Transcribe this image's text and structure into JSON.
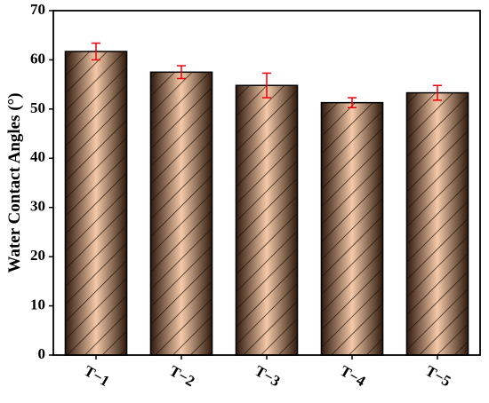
{
  "chart_data": {
    "type": "bar",
    "ylabel": "Water Contact Angles (°)",
    "categories": [
      "T−1",
      "T−2",
      "T−3",
      "T−4",
      "T−5"
    ],
    "values": [
      61.7,
      57.5,
      54.8,
      51.3,
      53.3
    ],
    "errors": [
      1.7,
      1.3,
      2.5,
      1.0,
      1.5
    ],
    "color": "#f5c9a8",
    "error_color": "#e8000b",
    "ylim": [
      0,
      70
    ],
    "yticks": [
      0,
      10,
      20,
      30,
      40,
      50,
      60,
      70
    ]
  }
}
